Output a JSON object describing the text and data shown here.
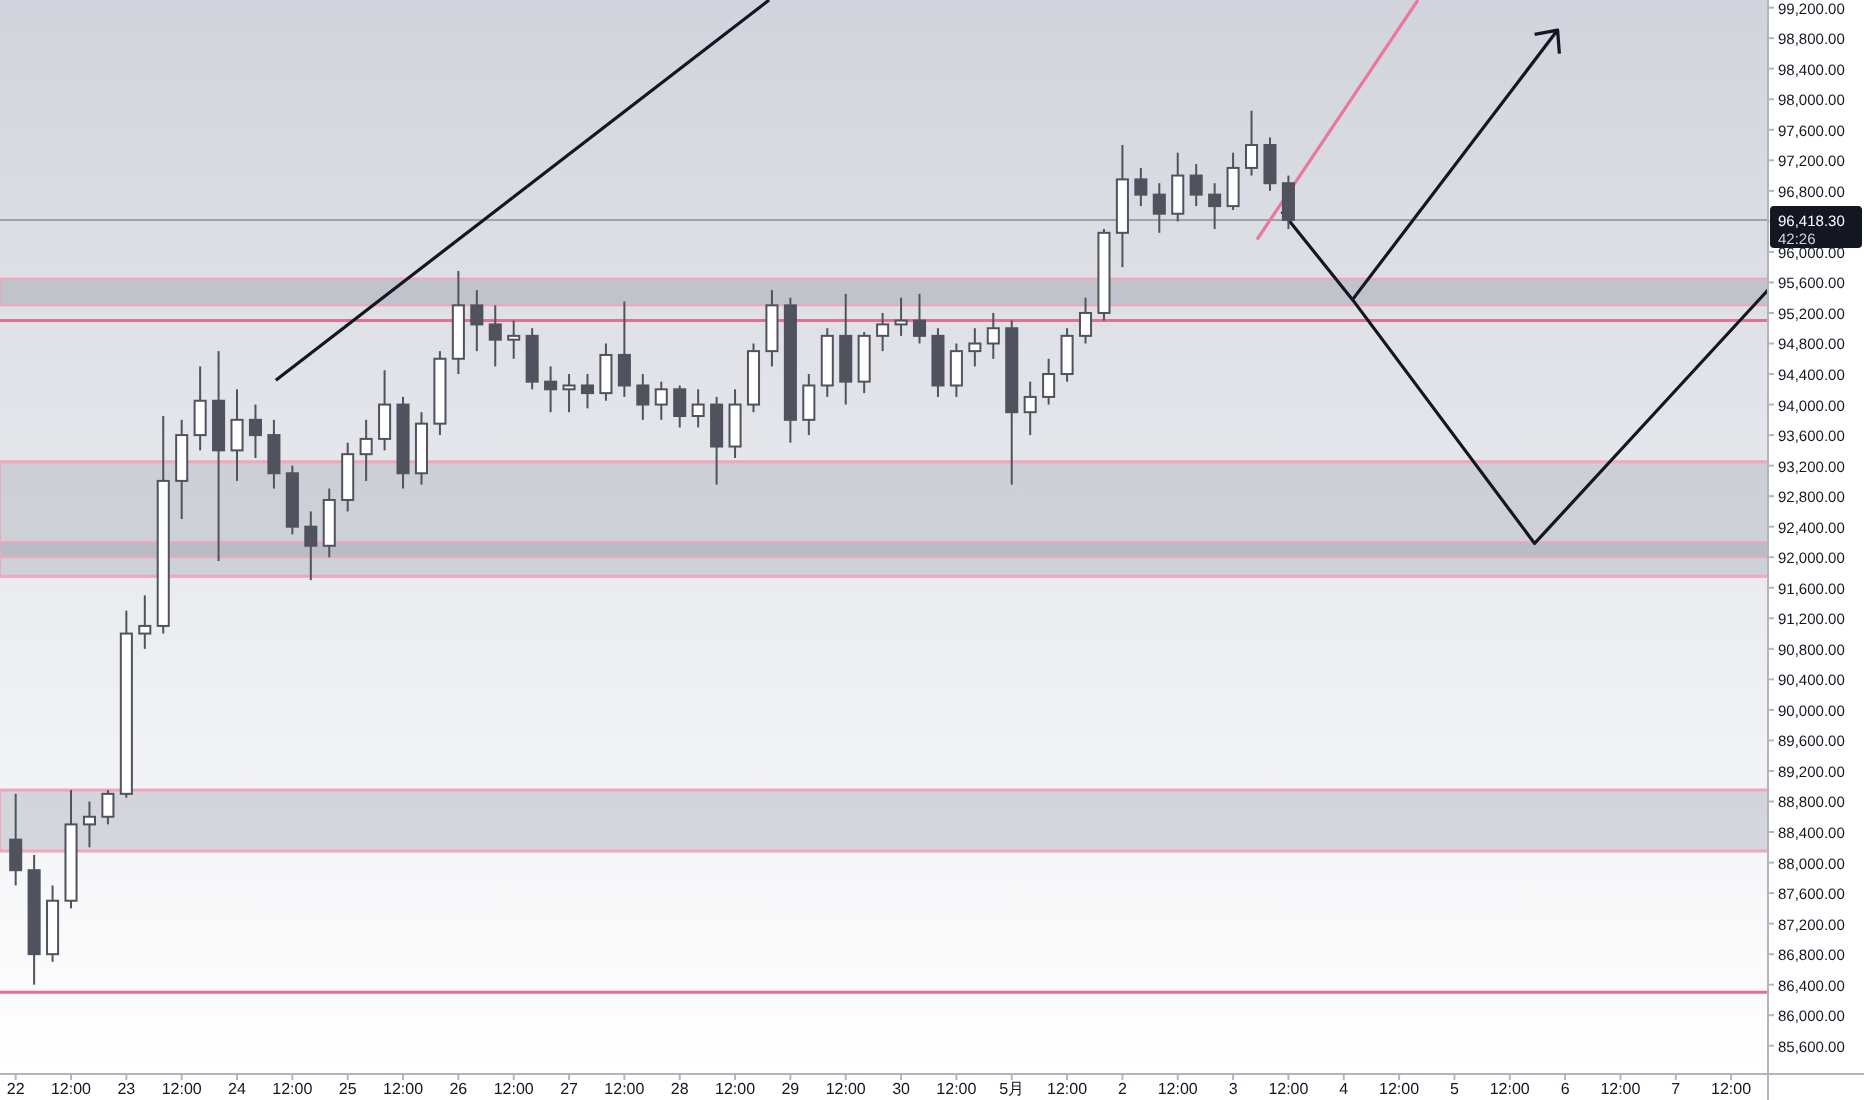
{
  "chart_data": {
    "type": "candlestick",
    "categories": [
      "22",
      null,
      null,
      "12:00",
      null,
      null,
      "23",
      null,
      null,
      "12:00",
      null,
      null,
      "24",
      null,
      null,
      "12:00",
      null,
      null,
      "25",
      null,
      null,
      "12:00",
      null,
      null,
      "26",
      null,
      null,
      "12:00",
      null,
      null,
      "27",
      null,
      null,
      "12:00",
      null,
      null,
      "28",
      null,
      null,
      "12:00",
      null,
      null,
      "29",
      null,
      null,
      "12:00",
      null,
      null,
      "30",
      null,
      null,
      "12:00",
      null,
      null,
      "5月",
      null,
      null,
      "12:00",
      null,
      null,
      "2",
      null,
      null,
      "12:00",
      null,
      null,
      "3",
      null,
      null,
      "12:00",
      null,
      null,
      "4",
      null,
      null,
      "12:00",
      null,
      null,
      "5",
      null,
      null,
      "12:00",
      null,
      null,
      "6",
      null,
      null,
      "12:00",
      null,
      null,
      "7",
      null,
      null,
      "12:00",
      null
    ],
    "series": [
      {
        "color": "#50535e",
        "ohlc": [
          [
            88300,
            88900,
            87700,
            87900
          ],
          [
            87900,
            88100,
            86400,
            86800
          ],
          [
            86800,
            87700,
            86700,
            87500
          ],
          [
            87500,
            88950,
            87400,
            88500
          ],
          [
            88500,
            88800,
            88200,
            88600
          ],
          [
            88600,
            88950,
            88500,
            88900
          ],
          [
            88900,
            91300,
            88850,
            91000
          ],
          [
            91000,
            91500,
            90800,
            91100
          ],
          [
            91100,
            93850,
            91000,
            93000
          ],
          [
            93000,
            93800,
            92500,
            93600
          ],
          [
            93600,
            94500,
            93400,
            94050
          ],
          [
            94050,
            94700,
            91950,
            93400
          ],
          [
            93400,
            94200,
            93000,
            93800
          ],
          [
            93800,
            94000,
            93300,
            93600
          ],
          [
            93600,
            93800,
            92900,
            93100
          ],
          [
            93100,
            93200,
            92300,
            92400
          ],
          [
            92400,
            92600,
            91700,
            92150
          ],
          [
            92150,
            92900,
            92000,
            92750
          ],
          [
            92750,
            93500,
            92600,
            93350
          ],
          [
            93350,
            93800,
            93000,
            93550
          ],
          [
            93550,
            94450,
            93400,
            94000
          ],
          [
            94000,
            94100,
            92900,
            93100
          ],
          [
            93100,
            93900,
            92950,
            93750
          ],
          [
            93750,
            94700,
            93600,
            94600
          ],
          [
            94600,
            95750,
            94400,
            95300
          ],
          [
            95300,
            95500,
            94700,
            95050
          ],
          [
            95050,
            95300,
            94500,
            94850
          ],
          [
            94850,
            95100,
            94600,
            94900
          ],
          [
            94900,
            95000,
            94200,
            94300
          ],
          [
            94300,
            94500,
            93900,
            94200
          ],
          [
            94200,
            94400,
            93900,
            94250
          ],
          [
            94250,
            94400,
            93950,
            94150
          ],
          [
            94150,
            94800,
            94050,
            94650
          ],
          [
            94650,
            95350,
            94100,
            94250
          ],
          [
            94250,
            94400,
            93800,
            94000
          ],
          [
            94000,
            94300,
            93800,
            94200
          ],
          [
            94200,
            94250,
            93700,
            93850
          ],
          [
            93850,
            94200,
            93700,
            94000
          ],
          [
            94000,
            94100,
            92950,
            93450
          ],
          [
            93450,
            94200,
            93300,
            94000
          ],
          [
            94000,
            94800,
            93900,
            94700
          ],
          [
            94700,
            95500,
            94500,
            95300
          ],
          [
            95300,
            95400,
            93500,
            93800
          ],
          [
            93800,
            94400,
            93600,
            94250
          ],
          [
            94250,
            95000,
            94100,
            94900
          ],
          [
            94900,
            95450,
            94000,
            94300
          ],
          [
            94300,
            94950,
            94150,
            94900
          ],
          [
            94900,
            95200,
            94700,
            95050
          ],
          [
            95050,
            95400,
            94900,
            95100
          ],
          [
            95100,
            95450,
            94800,
            94900
          ],
          [
            94900,
            95000,
            94100,
            94250
          ],
          [
            94250,
            94800,
            94100,
            94700
          ],
          [
            94700,
            95000,
            94500,
            94800
          ],
          [
            94800,
            95200,
            94600,
            95000
          ],
          [
            95000,
            95100,
            92950,
            93900
          ],
          [
            93900,
            94300,
            93600,
            94100
          ],
          [
            94100,
            94600,
            94000,
            94400
          ],
          [
            94400,
            95000,
            94300,
            94900
          ],
          [
            94900,
            95400,
            94800,
            95200
          ],
          [
            95200,
            96300,
            95100,
            96250
          ],
          [
            96250,
            97400,
            95800,
            96950
          ],
          [
            96950,
            97100,
            96600,
            96750
          ],
          [
            96750,
            96900,
            96250,
            96500
          ],
          [
            96500,
            97300,
            96400,
            97000
          ],
          [
            97000,
            97150,
            96600,
            96750
          ],
          [
            96750,
            96900,
            96300,
            96600
          ],
          [
            96600,
            97300,
            96550,
            97100
          ],
          [
            97100,
            97850,
            97000,
            97400
          ],
          [
            97400,
            97500,
            96800,
            96900
          ],
          [
            96900,
            97000,
            96300,
            96418.3
          ],
          null,
          null,
          null,
          null,
          null,
          null,
          null,
          null,
          null,
          null,
          null,
          null,
          null,
          null,
          null,
          null,
          null,
          null,
          null,
          null,
          null,
          null,
          null,
          null,
          null
        ]
      }
    ],
    "ylim": [
      85230,
      99300
    ],
    "yticks": [
      {
        "value": 85600,
        "label": "85,600.00"
      },
      {
        "value": 86000,
        "label": "86,000.00"
      },
      {
        "value": 86400,
        "label": "86,400.00"
      },
      {
        "value": 86800,
        "label": "86,800.00"
      },
      {
        "value": 87200,
        "label": "87,200.00"
      },
      {
        "value": 87600,
        "label": "87,600.00"
      },
      {
        "value": 88000,
        "label": "88,000.00"
      },
      {
        "value": 88400,
        "label": "88,400.00"
      },
      {
        "value": 88800,
        "label": "88,800.00"
      },
      {
        "value": 89200,
        "label": "89,200.00"
      },
      {
        "value": 89600,
        "label": "89,600.00"
      },
      {
        "value": 90000,
        "label": "90,000.00"
      },
      {
        "value": 90400,
        "label": "90,400.00"
      },
      {
        "value": 90800,
        "label": "90,800.00"
      },
      {
        "value": 91200,
        "label": "91,200.00"
      },
      {
        "value": 91600,
        "label": "91,600.00"
      },
      {
        "value": 92000,
        "label": "92,000.00"
      },
      {
        "value": 92400,
        "label": "92,400.00"
      },
      {
        "value": 92800,
        "label": "92,800.00"
      },
      {
        "value": 93200,
        "label": "93,200.00"
      },
      {
        "value": 93600,
        "label": "93,600.00"
      },
      {
        "value": 94000,
        "label": "94,000.00"
      },
      {
        "value": 94400,
        "label": "94,400.00"
      },
      {
        "value": 94800,
        "label": "94,800.00"
      },
      {
        "value": 95200,
        "label": "95,200.00"
      },
      {
        "value": 95600,
        "label": "95,600.00"
      },
      {
        "value": 96000,
        "label": "96,000.00"
      },
      {
        "value": 96400,
        "label": null
      },
      {
        "value": 96800,
        "label": "96,800.00"
      },
      {
        "value": 97200,
        "label": "97,200.00"
      },
      {
        "value": 97600,
        "label": "97,600.00"
      },
      {
        "value": 98000,
        "label": "98,000.00"
      },
      {
        "value": 98400,
        "label": "98,400.00"
      },
      {
        "value": 98800,
        "label": "98,800.00"
      },
      {
        "value": 99200,
        "label": "99,200.00"
      }
    ],
    "ref_lines": [
      {
        "axis": "y",
        "value": 95100,
        "color": "#e0718f"
      },
      {
        "axis": "y",
        "value": 93250,
        "color": "#f0a6bb"
      },
      {
        "axis": "y",
        "value": 91750,
        "color": "#f0a6bb"
      },
      {
        "axis": "y",
        "value": 88950,
        "color": "#f0a6bb"
      },
      {
        "axis": "y",
        "value": 88150,
        "color": "#f0a6bb"
      },
      {
        "axis": "y",
        "value": 86300,
        "color": "#e0718f"
      },
      {
        "axis": "y",
        "value": 96418.3,
        "label": "96,418.30",
        "color": "#a0a3ab"
      }
    ],
    "bands": [
      {
        "axis": "y",
        "from": 91750,
        "to": 93250,
        "color": "#b8bbc4"
      },
      {
        "axis": "y",
        "from": 88150,
        "to": 88950,
        "color": "#b8bbc4"
      },
      {
        "axis": "y",
        "from": 95300,
        "to": 95650,
        "color": "#a9acb6"
      },
      {
        "axis": "y",
        "from": 92000,
        "to": 92200,
        "color": "#a9acb6"
      }
    ],
    "annotations": [
      "42:26"
    ],
    "grid": false
  }
}
